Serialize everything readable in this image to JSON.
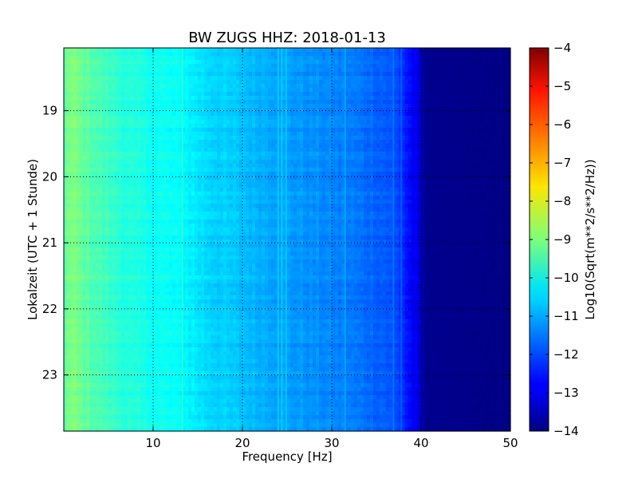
{
  "chart_data": {
    "type": "heatmap",
    "title": "BW ZUGS HHZ: 2018-01-13",
    "xlabel": "Frequency [Hz]",
    "ylabel": "Lokalzeit (UTC + 1 Stunde)",
    "xlim": [
      0,
      50
    ],
    "ylim": [
      18.05,
      23.85
    ],
    "y_inverted": true,
    "grid": true,
    "x_ticks": [
      10,
      20,
      30,
      40,
      50
    ],
    "y_ticks": [
      19,
      20,
      21,
      22,
      23
    ],
    "colorbar": {
      "label": "Log10(Sqrt(m**2/s**2/Hz))",
      "range": [
        -14,
        -4
      ],
      "ticks": [
        -14,
        -13,
        -12,
        -11,
        -10,
        -9,
        -8,
        -7,
        -6,
        -5,
        -4
      ],
      "colormap": "jet"
    },
    "spectrum_profile": {
      "frequency_hz": [
        0,
        1,
        2,
        4,
        6,
        8,
        10,
        12,
        13.5,
        16,
        19,
        21,
        23,
        25,
        28,
        30,
        32,
        34,
        36,
        37.5,
        38.5,
        39.5,
        40.5,
        50
      ],
      "log10_amplitude": [
        -9.3,
        -9.0,
        -9.25,
        -9.55,
        -9.8,
        -10.0,
        -10.1,
        -10.2,
        -10.3,
        -10.6,
        -10.8,
        -10.95,
        -11.05,
        -11.2,
        -11.35,
        -11.45,
        -11.55,
        -11.7,
        -11.85,
        -12.1,
        -12.6,
        -13.0,
        -13.85,
        -13.95
      ]
    },
    "spectral_lines_hz": [
      13.3,
      24.0,
      24.4,
      24.9,
      31.5,
      36.9,
      37.8
    ]
  }
}
